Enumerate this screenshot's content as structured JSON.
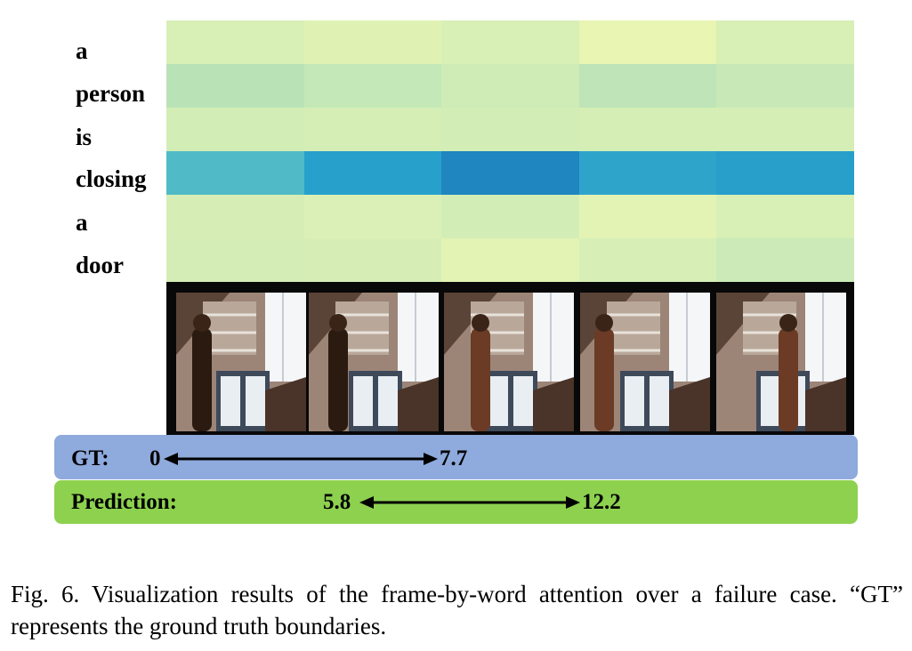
{
  "words": [
    "a",
    "person",
    "is",
    "closing",
    "a",
    "door"
  ],
  "heatmap": {
    "colors": [
      [
        "#d8efb6",
        "#dff2b4",
        "#d8efb6",
        "#e8f5b3",
        "#d8efb6"
      ],
      [
        "#b9e3b6",
        "#c4e8b7",
        "#cfecb6",
        "#bee4b8",
        "#c8e9b7"
      ],
      [
        "#d2edb6",
        "#d5eeb5",
        "#d2edb6",
        "#d5eeb5",
        "#d5eeb5"
      ],
      [
        "#50bbc6",
        "#27a1cb",
        "#1f86c0",
        "#2fa4cb",
        "#279fca"
      ],
      [
        "#d6eeb6",
        "#dbf0b6",
        "#d3edb6",
        "#e3f3b4",
        "#d8efb6"
      ],
      [
        "#d4edb6",
        "#d6eeb6",
        "#e2f3b3",
        "#d7efb6",
        "#cbeab7"
      ]
    ]
  },
  "film_strip": {
    "frame_count": 5
  },
  "gt": {
    "label": "GT:",
    "start": "0",
    "end": "7.7",
    "color": "#8faadc"
  },
  "prediction": {
    "label": "Prediction:",
    "start": "5.8",
    "end": "12.2",
    "color": "#8dd14f"
  },
  "caption": "Fig. 6.  Visualization results of the frame-by-word attention over a failure case. “GT” represents the ground truth boundaries."
}
